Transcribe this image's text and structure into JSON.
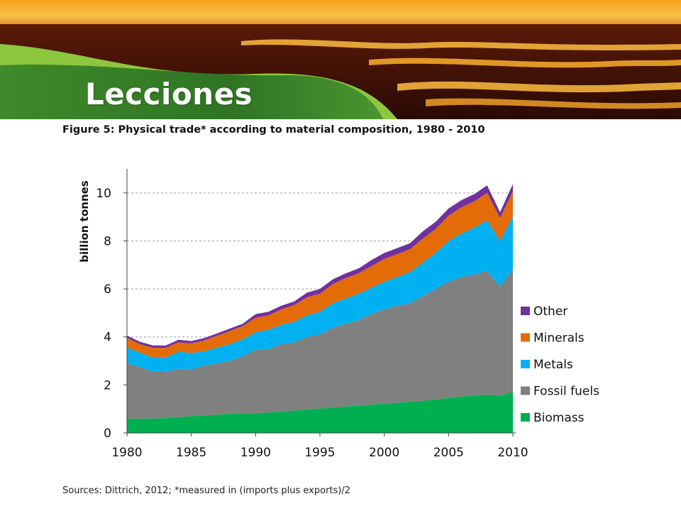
{
  "slide": {
    "title": "Lecciones"
  },
  "figure": {
    "title": "Figure 5: Physical trade* according to material composition, 1980 - 2010",
    "source": "Sources: Dittrich, 2012; *measured in (imports plus exports)/2"
  },
  "chart_data": {
    "type": "area",
    "stacked": true,
    "title": "",
    "xlabel": "",
    "ylabel": "billion tonnes",
    "xlim": [
      1980,
      2010
    ],
    "ylim": [
      0,
      11
    ],
    "x_ticks": [
      1980,
      1985,
      1990,
      1995,
      2000,
      2005,
      2010
    ],
    "y_ticks": [
      0,
      2,
      4,
      6,
      8,
      10
    ],
    "grid": "horizontal dashed",
    "legend_position": "right",
    "x": [
      1980,
      1981,
      1982,
      1983,
      1984,
      1985,
      1986,
      1987,
      1988,
      1989,
      1990,
      1991,
      1992,
      1993,
      1994,
      1995,
      1996,
      1997,
      1998,
      1999,
      2000,
      2001,
      2002,
      2003,
      2004,
      2005,
      2006,
      2007,
      2008,
      2009,
      2010
    ],
    "series": [
      {
        "name": "Biomass",
        "color": "#00b050",
        "values": [
          0.6,
          0.6,
          0.6,
          0.62,
          0.66,
          0.7,
          0.72,
          0.76,
          0.8,
          0.82,
          0.82,
          0.85,
          0.9,
          0.93,
          0.98,
          1.02,
          1.06,
          1.1,
          1.14,
          1.18,
          1.22,
          1.26,
          1.3,
          1.34,
          1.4,
          1.46,
          1.52,
          1.56,
          1.6,
          1.55,
          1.72
        ]
      },
      {
        "name": "Fossil fuels",
        "color": "#808080",
        "values": [
          2.3,
          2.15,
          1.95,
          1.92,
          2.02,
          1.95,
          2.08,
          2.14,
          2.2,
          2.38,
          2.63,
          2.65,
          2.8,
          2.85,
          3.02,
          3.08,
          3.32,
          3.45,
          3.56,
          3.77,
          3.93,
          4.04,
          4.1,
          4.36,
          4.6,
          4.84,
          4.98,
          5.04,
          5.16,
          4.55,
          5.1
        ]
      },
      {
        "name": "Metals",
        "color": "#00b0f0",
        "values": [
          0.66,
          0.6,
          0.6,
          0.6,
          0.7,
          0.68,
          0.6,
          0.65,
          0.7,
          0.7,
          0.75,
          0.8,
          0.8,
          0.85,
          0.9,
          0.95,
          1.02,
          1.05,
          1.1,
          1.1,
          1.15,
          1.2,
          1.3,
          1.4,
          1.5,
          1.7,
          1.8,
          1.95,
          2.1,
          1.9,
          2.2
        ]
      },
      {
        "name": "Minerals",
        "color": "#e36c09",
        "values": [
          0.4,
          0.35,
          0.4,
          0.4,
          0.4,
          0.4,
          0.45,
          0.5,
          0.55,
          0.55,
          0.6,
          0.6,
          0.65,
          0.7,
          0.75,
          0.75,
          0.8,
          0.85,
          0.85,
          0.9,
          0.95,
          0.95,
          0.95,
          1.0,
          1.0,
          1.05,
          1.1,
          1.1,
          1.15,
          0.95,
          1.05
        ]
      },
      {
        "name": "Other",
        "color": "#7030a0",
        "values": [
          0.1,
          0.1,
          0.1,
          0.1,
          0.1,
          0.1,
          0.1,
          0.1,
          0.1,
          0.1,
          0.15,
          0.15,
          0.15,
          0.15,
          0.2,
          0.2,
          0.2,
          0.2,
          0.2,
          0.25,
          0.25,
          0.25,
          0.25,
          0.3,
          0.3,
          0.3,
          0.3,
          0.3,
          0.3,
          0.25,
          0.3
        ]
      }
    ],
    "legend_order": [
      "Other",
      "Minerals",
      "Metals",
      "Fossil fuels",
      "Biomass"
    ]
  }
}
